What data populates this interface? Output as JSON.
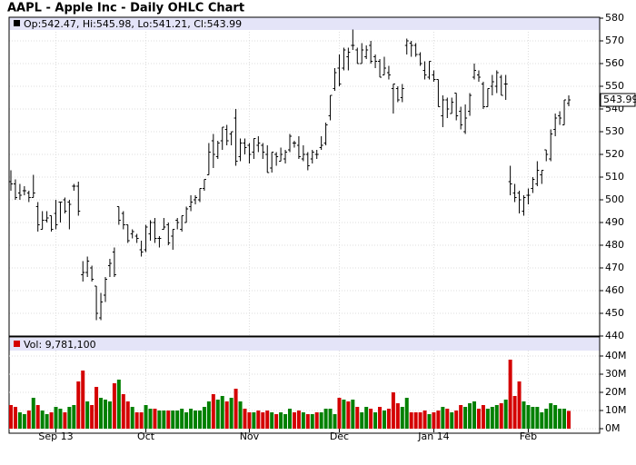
{
  "chart_data": [
    {
      "type": "ohlc",
      "title": "AAPL - Apple Inc - Daily OHLC Chart",
      "info": "Op:542.47, Hi:545.98, Lo:541.21, Cl:543.99",
      "last_label": "543.99",
      "color": "#000000",
      "categories": [
        null,
        null,
        null,
        null,
        null,
        null,
        null,
        null,
        null,
        null,
        "Sep 13",
        null,
        null,
        null,
        null,
        null,
        null,
        null,
        null,
        null,
        null,
        null,
        null,
        null,
        null,
        null,
        null,
        null,
        null,
        null,
        "Oct",
        null,
        null,
        null,
        null,
        null,
        null,
        null,
        null,
        null,
        null,
        null,
        null,
        null,
        null,
        null,
        null,
        null,
        null,
        null,
        null,
        null,
        null,
        "Nov",
        null,
        null,
        null,
        null,
        null,
        null,
        null,
        null,
        null,
        null,
        null,
        null,
        null,
        null,
        null,
        null,
        null,
        null,
        null,
        "Dec",
        null,
        null,
        null,
        null,
        null,
        null,
        null,
        null,
        null,
        null,
        null,
        null,
        null,
        null,
        null,
        null,
        null,
        null,
        null,
        null,
        "Jan 14",
        null,
        null,
        null,
        null,
        null,
        null,
        null,
        null,
        null,
        null,
        null,
        null,
        null,
        null,
        null,
        null,
        null,
        null,
        null,
        null,
        "Feb",
        null,
        null,
        null,
        null,
        null,
        null,
        null,
        null,
        null
      ],
      "open": [
        508,
        507,
        503,
        504,
        503,
        501,
        497,
        487,
        491,
        493,
        494,
        499,
        500,
        499,
        506,
        506,
        467,
        468,
        470,
        462,
        448,
        458,
        471,
        477,
        497,
        494,
        489,
        485,
        484,
        478,
        478,
        485,
        490,
        483,
        487,
        489,
        484,
        491,
        487,
        490,
        497,
        500,
        500,
        505,
        511,
        526,
        519,
        526,
        531,
        529,
        536,
        519,
        525,
        524,
        521,
        524,
        524,
        520,
        514,
        520,
        517,
        518,
        522,
        525,
        524,
        518,
        520,
        518,
        520,
        523,
        525,
        537,
        549,
        558,
        558,
        563,
        568,
        566,
        560,
        563,
        568,
        563,
        561,
        555,
        556,
        549,
        549,
        545,
        568,
        569,
        568,
        564,
        557,
        554,
        555,
        553,
        537,
        544,
        538,
        547,
        539,
        530,
        539,
        554,
        555,
        551,
        541,
        550,
        550,
        554,
        551,
        508,
        503,
        503,
        495,
        502,
        505,
        507,
        511,
        522,
        518,
        531,
        537,
        533,
        542.47
      ],
      "high": [
        513,
        509,
        507,
        506,
        504,
        511,
        499,
        495,
        495,
        493,
        500,
        499,
        501,
        500,
        507,
        508,
        473,
        475,
        471,
        462,
        459,
        466,
        474,
        479,
        497,
        495,
        489,
        487,
        485,
        482,
        489,
        491,
        492,
        484,
        492,
        490,
        487,
        492,
        493,
        497,
        502,
        502,
        505,
        509,
        525,
        529,
        526,
        532,
        533,
        530,
        540,
        527,
        527,
        525,
        527,
        528,
        525,
        524,
        521,
        521,
        523,
        522,
        529,
        526,
        528,
        524,
        521,
        522,
        522,
        528,
        534,
        546,
        558,
        564,
        567,
        567,
        575,
        567,
        569,
        568,
        570,
        564,
        562,
        563,
        559,
        551,
        550,
        551,
        571,
        570,
        569,
        565,
        561,
        561,
        557,
        553,
        546,
        545,
        545,
        547,
        541,
        542,
        547,
        560,
        557,
        552,
        549,
        555,
        557,
        555,
        555,
        515,
        507,
        504,
        502,
        505,
        510,
        517,
        513,
        522,
        531,
        538,
        539,
        544,
        545.98
      ],
      "low": [
        504,
        500,
        500,
        502,
        499,
        501,
        486,
        487,
        490,
        486,
        487,
        490,
        494,
        487,
        504,
        493,
        464,
        466,
        464,
        447,
        447,
        455,
        466,
        466,
        489,
        487,
        481,
        483,
        481,
        475,
        477,
        482,
        481,
        479,
        487,
        480,
        478,
        487,
        486,
        490,
        495,
        498,
        499,
        504,
        511,
        514,
        518,
        522,
        524,
        524,
        515,
        517,
        520,
        516,
        518,
        521,
        518,
        512,
        512,
        515,
        517,
        516,
        521,
        523,
        518,
        517,
        513,
        516,
        518,
        522,
        524,
        535,
        548,
        550,
        557,
        557,
        566,
        560,
        560,
        562,
        560,
        558,
        554,
        555,
        553,
        538,
        543,
        543,
        564,
        563,
        563,
        559,
        553,
        553,
        552,
        541,
        532,
        536,
        538,
        535,
        531,
        529,
        537,
        553,
        552,
        540,
        541,
        546,
        547,
        546,
        544,
        502,
        499,
        494,
        493,
        498,
        503,
        506,
        507,
        517,
        517,
        528,
        533,
        533,
        541.21
      ],
      "close": [
        507,
        501,
        502,
        504,
        501,
        503,
        489,
        491,
        492,
        487,
        489,
        499,
        495,
        498,
        506,
        495,
        468,
        473,
        465,
        450,
        455,
        465,
        472,
        467,
        491,
        489,
        482,
        486,
        483,
        477,
        488,
        490,
        483,
        483,
        488,
        481,
        487,
        490,
        493,
        496,
        499,
        501,
        505,
        509,
        521,
        520,
        525,
        532,
        526,
        530,
        517,
        525,
        523,
        520,
        527,
        525,
        521,
        512,
        521,
        519,
        520,
        521,
        528,
        525,
        519,
        520,
        515,
        521,
        520,
        524,
        533,
        546,
        556,
        551,
        566,
        565,
        568,
        560,
        566,
        566,
        561,
        561,
        554,
        558,
        555,
        551,
        544,
        549,
        570,
        568,
        564,
        560,
        555,
        561,
        553,
        541,
        544,
        540,
        543,
        537,
        533,
        536,
        546,
        557,
        554,
        541,
        549,
        552,
        556,
        546,
        551,
        507,
        501,
        500,
        501,
        502,
        509,
        513,
        513,
        520,
        529,
        536,
        536,
        544,
        543.99
      ],
      "ylim": [
        440,
        580
      ],
      "yticks": [
        440,
        450,
        460,
        470,
        480,
        490,
        500,
        510,
        520,
        530,
        540,
        550,
        560,
        570,
        580
      ],
      "grid": true
    },
    {
      "type": "volume",
      "label": "Vol: 9,781,100",
      "up_color": "#008000",
      "down_color": "#d40000",
      "values": [
        13,
        12,
        9,
        8,
        10,
        17,
        13,
        10,
        8,
        9,
        12,
        11,
        9,
        12,
        13,
        26,
        32,
        15,
        13,
        23,
        17,
        16,
        15,
        25,
        27,
        19,
        15,
        12,
        9,
        9,
        13,
        11,
        11,
        10,
        10,
        10,
        10,
        10,
        11,
        9,
        11,
        10,
        10,
        12,
        15,
        19,
        16,
        18,
        15,
        17,
        22,
        15,
        11,
        9,
        9,
        10,
        9,
        10,
        9,
        8,
        9,
        8,
        11,
        9,
        10,
        9,
        8,
        8,
        9,
        9,
        11,
        11,
        8,
        17,
        16,
        15,
        16,
        12,
        9,
        12,
        11,
        9,
        12,
        10,
        11,
        20,
        14,
        12,
        17,
        9,
        9,
        9,
        10,
        8,
        9,
        10,
        12,
        11,
        9,
        10,
        13,
        12,
        14,
        15,
        11,
        13,
        11,
        12,
        13,
        14,
        16,
        38,
        18,
        26,
        15,
        13,
        12,
        12,
        9,
        11,
        14,
        13,
        11,
        11,
        9.7811
      ],
      "ylim": [
        0,
        50
      ],
      "yticks": [
        {
          "value": 0,
          "label": "0M"
        },
        {
          "value": 10,
          "label": "10M"
        },
        {
          "value": 20,
          "label": "20M"
        },
        {
          "value": 30,
          "label": "30M"
        },
        {
          "value": 40,
          "label": "40M"
        }
      ],
      "grid": true
    }
  ]
}
